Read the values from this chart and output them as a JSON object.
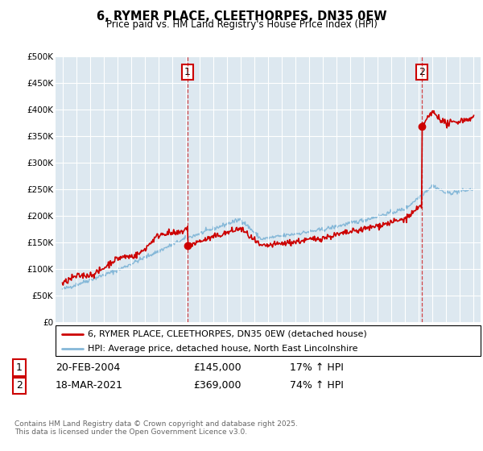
{
  "title": "6, RYMER PLACE, CLEETHORPES, DN35 0EW",
  "subtitle": "Price paid vs. HM Land Registry's House Price Index (HPI)",
  "legend_line1": "6, RYMER PLACE, CLEETHORPES, DN35 0EW (detached house)",
  "legend_line2": "HPI: Average price, detached house, North East Lincolnshire",
  "annotation1_label": "1",
  "annotation1_date": "20-FEB-2004",
  "annotation1_price": "£145,000",
  "annotation1_hpi": "17% ↑ HPI",
  "annotation1_year": 2004.13,
  "annotation1_value": 145000,
  "annotation2_label": "2",
  "annotation2_date": "18-MAR-2021",
  "annotation2_price": "£369,000",
  "annotation2_hpi": "74% ↑ HPI",
  "annotation2_year": 2021.21,
  "annotation2_value": 369000,
  "red_color": "#cc0000",
  "blue_color": "#85b8d8",
  "background_color": "#dde8f0",
  "grid_color": "#ffffff",
  "ylim": [
    0,
    500000
  ],
  "xlim_start": 1994.5,
  "xlim_end": 2025.5,
  "footer": "Contains HM Land Registry data © Crown copyright and database right 2025.\nThis data is licensed under the Open Government Licence v3.0.",
  "yticks": [
    0,
    50000,
    100000,
    150000,
    200000,
    250000,
    300000,
    350000,
    400000,
    450000,
    500000
  ],
  "ytick_labels": [
    "£0",
    "£50K",
    "£100K",
    "£150K",
    "£200K",
    "£250K",
    "£300K",
    "£350K",
    "£400K",
    "£450K",
    "£500K"
  ],
  "xticks": [
    1995,
    1996,
    1997,
    1998,
    1999,
    2000,
    2001,
    2002,
    2003,
    2004,
    2005,
    2006,
    2007,
    2008,
    2009,
    2010,
    2011,
    2012,
    2013,
    2014,
    2015,
    2016,
    2017,
    2018,
    2019,
    2020,
    2021,
    2022,
    2023,
    2024,
    2025
  ]
}
